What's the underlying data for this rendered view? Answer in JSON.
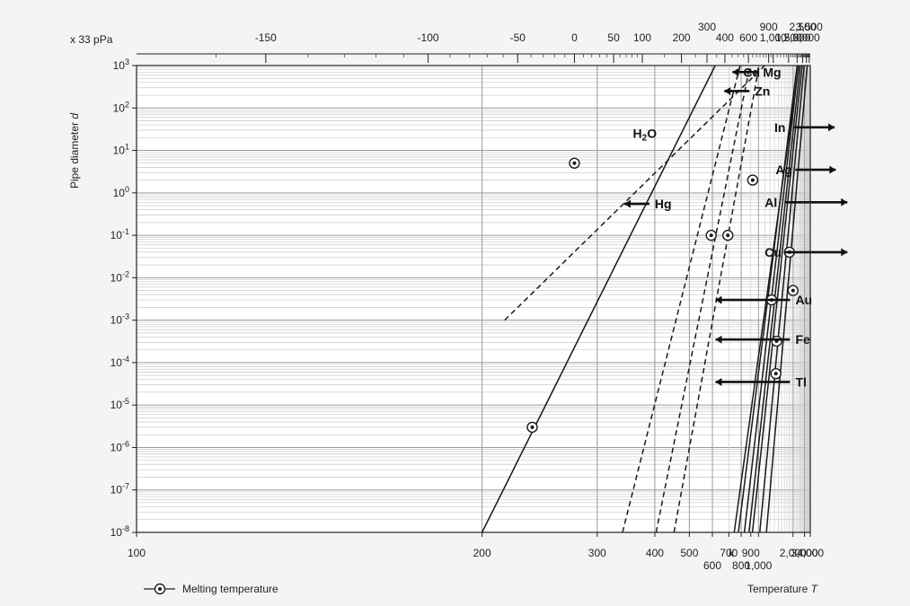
{
  "chart_data": {
    "type": "line",
    "title": "",
    "ylabel_main": "Pipe diameter",
    "ylabel_var": "d",
    "xlabel_main": "Temperature",
    "xlabel_var": "T",
    "x_unit": "k",
    "top_unit": "x 33 pPa",
    "x_scale": "log-reciprocal",
    "y_scale": "log",
    "xlim": [
      100,
      4000
    ],
    "ylim": [
      1e-08,
      1000
    ],
    "grid": true,
    "bottom_ticks": [
      {
        "value": 100,
        "label": "100",
        "row": 0
      },
      {
        "value": 200,
        "label": "200",
        "row": 0
      },
      {
        "value": 300,
        "label": "300",
        "row": 0
      },
      {
        "value": 400,
        "label": "400",
        "row": 0
      },
      {
        "value": 500,
        "label": "500",
        "row": 0
      },
      {
        "value": 600,
        "label": "600",
        "row": 1
      },
      {
        "value": 700,
        "label": "700",
        "row": 0
      },
      {
        "value": 800,
        "label": "800",
        "row": 1
      },
      {
        "value": 900,
        "label": "900",
        "row": 0
      },
      {
        "value": 1000,
        "label": "1,000",
        "row": 1
      },
      {
        "value": 2000,
        "label": "2,000",
        "row": 0
      },
      {
        "value": 3000,
        "label": "3,000",
        "row": 0
      },
      {
        "value": 4000,
        "label": "4,000",
        "row": 0
      }
    ],
    "top_ticks": [
      {
        "value": -150,
        "label": "-150",
        "row": 0
      },
      {
        "value": -100,
        "label": "-100",
        "row": 0
      },
      {
        "value": -50,
        "label": "-50",
        "row": 0
      },
      {
        "value": 0,
        "label": "0",
        "row": 0
      },
      {
        "value": 50,
        "label": "50",
        "row": 0
      },
      {
        "value": 100,
        "label": "100",
        "row": 0
      },
      {
        "value": 200,
        "label": "200",
        "row": 0
      },
      {
        "value": 300,
        "label": "300",
        "row": 1
      },
      {
        "value": 400,
        "label": "400",
        "row": 0
      },
      {
        "value": 600,
        "label": "600",
        "row": 0
      },
      {
        "value": 900,
        "label": "900",
        "row": 1
      },
      {
        "value": 1000,
        "label": "1,000",
        "row": 0
      },
      {
        "value": 1500,
        "label": "1,500",
        "row": 0
      },
      {
        "value": 2000,
        "label": "2,000",
        "row": 0
      },
      {
        "value": 2500,
        "label": "2,500",
        "row": 1
      },
      {
        "value": 3000,
        "label": "3,000",
        "row": 0
      },
      {
        "value": 3500,
        "label": "3,500",
        "row": 1
      }
    ],
    "y_ticks": [
      {
        "exp": "3"
      },
      {
        "exp": "2"
      },
      {
        "exp": "1"
      },
      {
        "exp": "0"
      },
      {
        "exp": "-1"
      },
      {
        "exp": "-2"
      },
      {
        "exp": "-3"
      },
      {
        "exp": "-4"
      },
      {
        "exp": "-5"
      },
      {
        "exp": "-6"
      },
      {
        "exp": "-7"
      },
      {
        "exp": "-8"
      }
    ],
    "series": [
      {
        "name": "H2O",
        "label": "H",
        "sub": "2",
        "suffix": "O",
        "dashed": true,
        "x": [
          214,
          1100
        ],
        "y": [
          0.001,
          1000
        ],
        "melting": {
          "x": 273,
          "y": 5
        }
      },
      {
        "name": "Hg",
        "label": "Hg",
        "dashed": false,
        "x": [
          200,
          615
        ],
        "y": [
          1e-08,
          1000
        ],
        "melting": {
          "x": 234,
          "y": 3e-06
        }
      },
      {
        "name": "Cd",
        "label": "Cd",
        "dashed": true,
        "x": [
          337,
          790
        ],
        "y": [
          1e-08,
          1000
        ],
        "melting": {
          "x": 594,
          "y": 0.1
        }
      },
      {
        "name": "Zn",
        "label": "Zn",
        "dashed": true,
        "x": [
          403,
          890
        ],
        "y": [
          1e-08,
          1000
        ],
        "melting": {
          "x": 693,
          "y": 0.1
        }
      },
      {
        "name": "Mg",
        "label": "Mg",
        "dashed": true,
        "x": [
          450,
          1010
        ],
        "y": [
          1e-08,
          1000
        ],
        "melting": {
          "x": 923,
          "y": 2
        }
      },
      {
        "name": "In",
        "label": "In",
        "dashed": false,
        "x": [
          740,
          2400
        ],
        "y": [
          1e-08,
          1000
        ],
        "melting": null
      },
      {
        "name": "Ag",
        "label": "Ag",
        "dashed": false,
        "x": [
          775,
          2270
        ],
        "y": [
          1e-08,
          1000
        ],
        "melting": {
          "x": 1235,
          "y": 0.003
        }
      },
      {
        "name": "Al",
        "label": "Al",
        "dashed": false,
        "x": [
          830,
          2380
        ],
        "y": [
          1e-08,
          1000
        ],
        "melting": {
          "x": 1337,
          "y": 5.5e-05
        }
      },
      {
        "name": "Cu",
        "label": "Cu",
        "dashed": false,
        "x": [
          880,
          2540
        ],
        "y": [
          1e-08,
          1000
        ],
        "melting": {
          "x": 1357,
          "y": 0.00032
        }
      },
      {
        "name": "Au",
        "label": "Au",
        "dashed": false,
        "x": [
          920,
          2720
        ],
        "y": [
          1e-08,
          1000
        ],
        "melting": null
      },
      {
        "name": "Fe",
        "label": "Fe",
        "dashed": false,
        "x": [
          1020,
          2950
        ],
        "y": [
          1e-08,
          1000
        ],
        "melting": {
          "x": 1811,
          "y": 0.04
        }
      },
      {
        "name": "Tl",
        "label": "Tl",
        "dashed": false,
        "x": [
          1130,
          3400
        ],
        "y": [
          1e-08,
          1000
        ],
        "melting": {
          "x": 2000,
          "y": 0.005
        }
      }
    ],
    "annotations": [
      {
        "text": "Mg",
        "arrow": true,
        "dir": "left",
        "data_x": 1070,
        "data_y": 700
      },
      {
        "text": "Zn",
        "arrow": true,
        "dir": "left",
        "data_x": 950,
        "data_y": 250
      },
      {
        "text": "Cd",
        "arrow": false,
        "dir": "none",
        "data_x": 820,
        "data_y": 700
      },
      {
        "text": "In",
        "arrow": true,
        "dir": "right",
        "data_x": 1300,
        "data_y": 35
      },
      {
        "text": "Ag",
        "arrow": true,
        "dir": "right",
        "data_x": 1330,
        "data_y": 3.5
      },
      {
        "text": "Al",
        "arrow": true,
        "dir": "right",
        "data_x": 1100,
        "data_y": 0.6
      },
      {
        "text": "Cu",
        "arrow": true,
        "dir": "right",
        "data_x": 1100,
        "data_y": 0.04
      },
      {
        "text": "Au",
        "arrow": true,
        "dir": "left",
        "data_x": 2150,
        "data_y": 0.003
      },
      {
        "text": "Fe",
        "arrow": true,
        "dir": "left",
        "data_x": 2150,
        "data_y": 0.00035
      },
      {
        "text": "Tl",
        "arrow": true,
        "dir": "left",
        "data_x": 2150,
        "data_y": 3.5e-05
      },
      {
        "text": "Hg",
        "arrow": true,
        "dir": "left",
        "data_x": 400,
        "data_y": 0.55
      },
      {
        "text": "H2O",
        "arrow": false,
        "dir": "none",
        "data_x": 355,
        "data_y": 25
      }
    ],
    "legend": {
      "label": "Melting temperature",
      "position": "bottom-left"
    }
  }
}
